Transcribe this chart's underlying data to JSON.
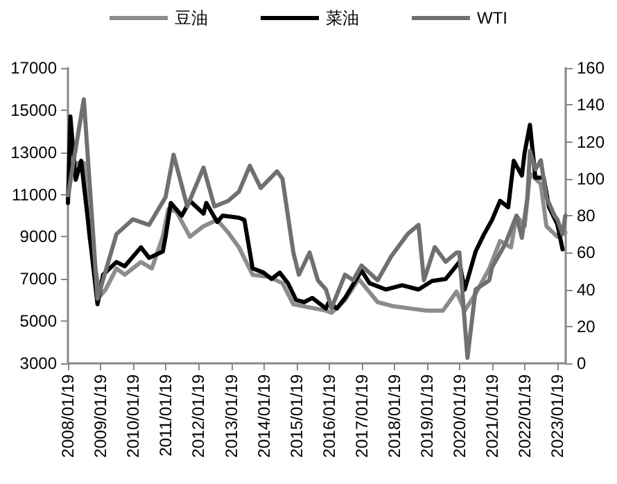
{
  "chart_data": {
    "type": "line",
    "series": [
      {
        "name": "豆油",
        "color": "#8c8c8c",
        "x": [
          "2008-01-19",
          "2008-03",
          "2008-07",
          "2008-09",
          "2009-01",
          "2009-03",
          "2009-07",
          "2009-10",
          "2010-04",
          "2010-08",
          "2010-12",
          "2011-02",
          "2011-05",
          "2011-10",
          "2012-03",
          "2012-08",
          "2012-12",
          "2013-04",
          "2013-09",
          "2014-03",
          "2014-08",
          "2014-12",
          "2015-04",
          "2015-12",
          "2016-02",
          "2016-07",
          "2016-12",
          "2017-07",
          "2018-01",
          "2018-07",
          "2019-01",
          "2019-07",
          "2019-12",
          "2020-03",
          "2020-07",
          "2020-12",
          "2021-04",
          "2021-08",
          "2021-10",
          "2022-01",
          "2022-03",
          "2022-07",
          "2022-09",
          "2023-01",
          "2023-04"
        ],
        "values": [
          10800,
          12500,
          12500,
          9000,
          6200,
          6500,
          7500,
          7200,
          7800,
          7500,
          9000,
          10300,
          10200,
          9000,
          9500,
          9800,
          9200,
          8500,
          7200,
          7100,
          6800,
          5800,
          5700,
          5500,
          5400,
          6000,
          7000,
          5900,
          5700,
          5600,
          5500,
          5500,
          6400,
          5500,
          6300,
          7500,
          8800,
          8500,
          10000,
          9500,
          12000,
          11500,
          9500,
          9000,
          9200
        ]
      },
      {
        "name": "菜油",
        "color": "#000000",
        "x": [
          "2008-01-19",
          "2008-02",
          "2008-04",
          "2008-06",
          "2008-12",
          "2009-02",
          "2009-07",
          "2009-10",
          "2010-04",
          "2010-07",
          "2010-12",
          "2011-01",
          "2011-03",
          "2011-07",
          "2011-10",
          "2012-03",
          "2012-04",
          "2012-08",
          "2012-10",
          "2013-04",
          "2013-06",
          "2013-09",
          "2014-01",
          "2014-04",
          "2014-07",
          "2014-10",
          "2015-01",
          "2015-04",
          "2015-07",
          "2015-12",
          "2016-01",
          "2016-04",
          "2016-07",
          "2017-01",
          "2017-04",
          "2017-10",
          "2018-04",
          "2018-10",
          "2019-03",
          "2019-08",
          "2020-01",
          "2020-03",
          "2020-07",
          "2020-10",
          "2021-01",
          "2021-04",
          "2021-07",
          "2021-09",
          "2021-12",
          "2022-01",
          "2022-03",
          "2022-05",
          "2022-08",
          "2022-10",
          "2023-01",
          "2023-03"
        ],
        "values": [
          10600,
          14700,
          11700,
          12600,
          5800,
          7200,
          7800,
          7600,
          8500,
          8000,
          8300,
          9000,
          10600,
          10000,
          10700,
          10100,
          10600,
          9700,
          10000,
          9900,
          9800,
          7500,
          7300,
          7000,
          7300,
          6800,
          6000,
          5900,
          6100,
          5600,
          5900,
          5600,
          6100,
          7400,
          6800,
          6500,
          6700,
          6500,
          6900,
          7000,
          7800,
          6500,
          8300,
          9100,
          9800,
          10700,
          10400,
          12600,
          11900,
          13000,
          14300,
          11800,
          11800,
          10400,
          9600,
          8400
        ]
      },
      {
        "name": "WTI",
        "color": "#707070",
        "axis": "y2",
        "x": [
          "2008-01-19",
          "2008-07",
          "2008-12",
          "2009-07",
          "2010-01",
          "2010-07",
          "2011-01",
          "2011-04",
          "2011-09",
          "2012-03",
          "2012-07",
          "2012-12",
          "2013-04",
          "2013-08",
          "2013-12",
          "2014-06",
          "2014-08",
          "2014-12",
          "2015-02",
          "2015-06",
          "2015-09",
          "2015-12",
          "2016-02",
          "2016-07",
          "2016-10",
          "2017-01",
          "2017-07",
          "2017-12",
          "2018-06",
          "2018-10",
          "2018-12",
          "2019-04",
          "2019-08",
          "2019-12",
          "2020-01",
          "2020-04",
          "2020-07",
          "2020-12",
          "2021-01",
          "2021-06",
          "2021-10",
          "2021-12",
          "2022-02",
          "2022-03",
          "2022-05",
          "2022-07",
          "2022-09",
          "2022-12",
          "2023-01",
          "2023-03",
          "2023-04"
        ],
        "values": [
          91,
          143,
          35,
          70,
          78,
          75,
          90,
          113,
          85,
          106,
          85,
          88,
          93,
          107,
          95,
          104,
          100,
          60,
          48,
          60,
          45,
          40,
          30,
          48,
          45,
          53,
          45,
          58,
          70,
          75,
          45,
          63,
          55,
          60,
          60,
          3,
          40,
          45,
          52,
          65,
          80,
          68,
          90,
          115,
          105,
          110,
          90,
          80,
          78,
          70,
          80
        ]
      }
    ],
    "xlim": [
      "2008-01-19",
      "2023-04-19"
    ],
    "xticks": [
      {
        "value": "2008-01-19",
        "label": "2008/01/19"
      },
      {
        "value": "2009-01-19",
        "label": "2009/01/19"
      },
      {
        "value": "2010-01-19",
        "label": "2010/01/19"
      },
      {
        "value": "2011-01-19",
        "label": "2011/01/19"
      },
      {
        "value": "2012-01-19",
        "label": "2012/01/19"
      },
      {
        "value": "2013-01-19",
        "label": "2013/01/19"
      },
      {
        "value": "2014-01-19",
        "label": "2014/01/19"
      },
      {
        "value": "2015-01-19",
        "label": "2015/01/19"
      },
      {
        "value": "2016-01-19",
        "label": "2016/01/19"
      },
      {
        "value": "2017-01-19",
        "label": "2017/01/19"
      },
      {
        "value": "2018-01-19",
        "label": "2018/01/19"
      },
      {
        "value": "2019-01-19",
        "label": "2019/01/19"
      },
      {
        "value": "2020-01-19",
        "label": "2020/01/19"
      },
      {
        "value": "2021-01-19",
        "label": "2021/01/19"
      },
      {
        "value": "2022-01-19",
        "label": "2022/01/19"
      },
      {
        "value": "2023-01-19",
        "label": "2023/01/19"
      }
    ],
    "ylim": [
      3000,
      17000
    ],
    "yticks": [
      3000,
      5000,
      7000,
      9000,
      11000,
      13000,
      15000,
      17000
    ],
    "y2lim": [
      0,
      160
    ],
    "y2ticks": [
      0,
      20,
      40,
      60,
      80,
      100,
      120,
      140,
      160
    ],
    "grid": false,
    "legend": "top",
    "marker": "none",
    "line_style": "solid"
  }
}
